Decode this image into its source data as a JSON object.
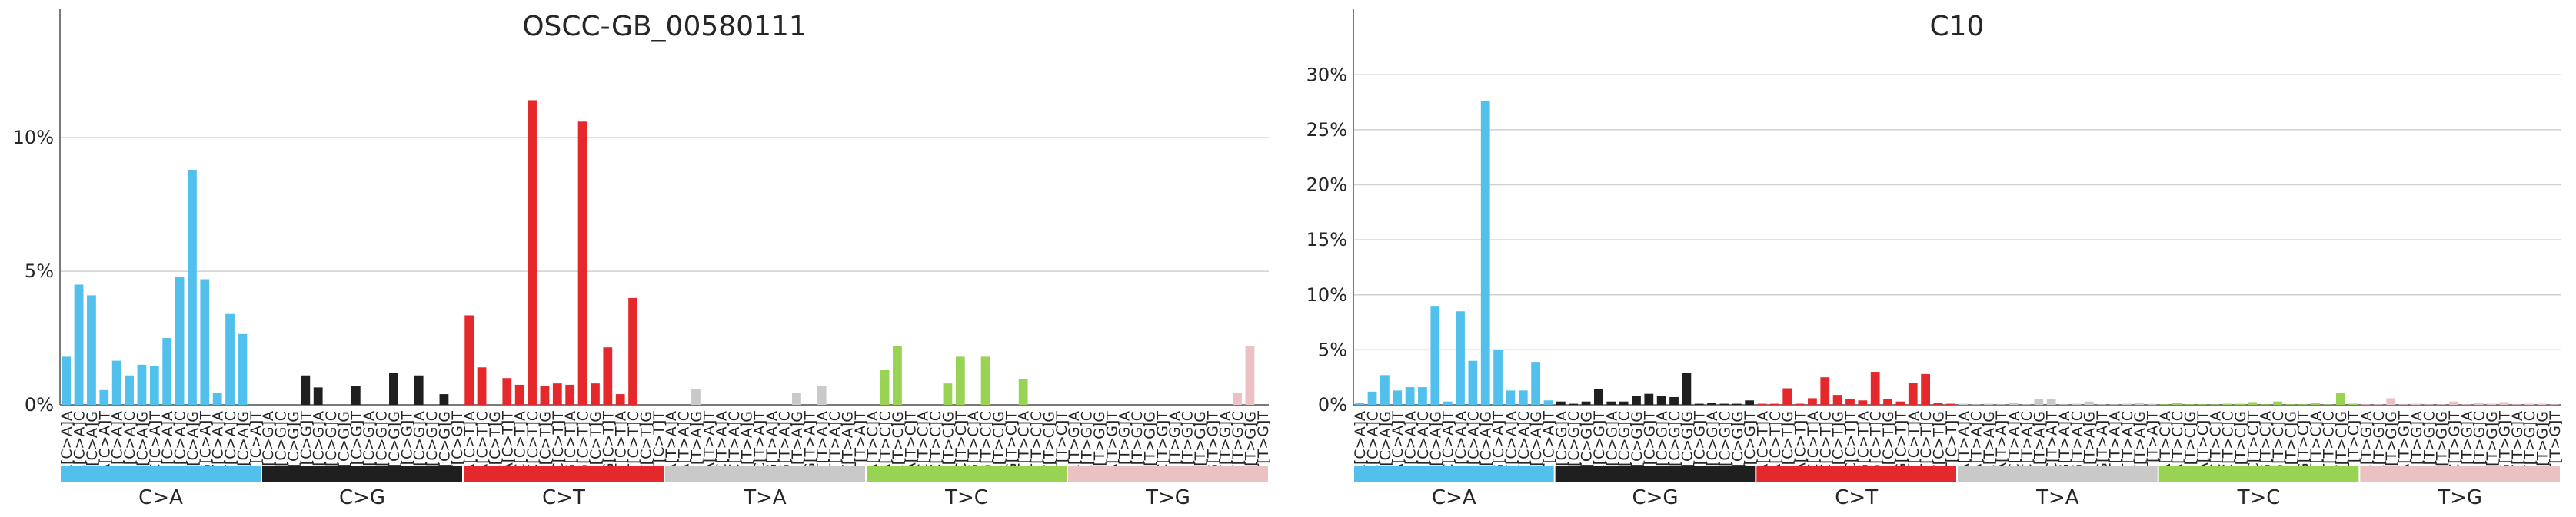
{
  "colors": {
    "C>A": "#52C0EC",
    "C>G": "#1F1F1F",
    "C>T": "#E4282B",
    "T>A": "#C9C9C9",
    "T>C": "#98D353",
    "T>G": "#EBC1C4"
  },
  "mutation_types": [
    "C>A",
    "C>G",
    "C>T",
    "T>A",
    "T>C",
    "T>G"
  ],
  "chart_data": [
    {
      "type": "bar",
      "title": "OSCC-GB_00580111",
      "ylim": [
        0,
        14
      ],
      "yticks": [
        0,
        5,
        10
      ],
      "ytick_labels": [
        "0%",
        "5%",
        "10%"
      ],
      "grid": true,
      "categories": [
        "A[C>A]A",
        "A[C>A]C",
        "A[C>A]G",
        "A[C>A]T",
        "C[C>A]A",
        "C[C>A]C",
        "C[C>A]G",
        "C[C>A]T",
        "G[C>A]A",
        "G[C>A]C",
        "G[C>A]G",
        "G[C>A]T",
        "T[C>A]A",
        "T[C>A]C",
        "T[C>A]G",
        "T[C>A]T",
        "A[C>G]A",
        "A[C>G]C",
        "A[C>G]G",
        "A[C>G]T",
        "C[C>G]A",
        "C[C>G]C",
        "C[C>G]G",
        "C[C>G]T",
        "G[C>G]A",
        "G[C>G]C",
        "G[C>G]G",
        "G[C>G]T",
        "T[C>G]A",
        "T[C>G]C",
        "T[C>G]G",
        "T[C>G]T",
        "A[C>T]A",
        "A[C>T]C",
        "A[C>T]G",
        "A[C>T]T",
        "C[C>T]A",
        "C[C>T]C",
        "C[C>T]G",
        "C[C>T]T",
        "G[C>T]A",
        "G[C>T]C",
        "G[C>T]G",
        "G[C>T]T",
        "T[C>T]A",
        "T[C>T]C",
        "T[C>T]G",
        "T[C>T]T",
        "A[T>A]A",
        "A[T>A]C",
        "A[T>A]G",
        "A[T>A]T",
        "C[T>A]A",
        "C[T>A]C",
        "C[T>A]G",
        "C[T>A]T",
        "G[T>A]A",
        "G[T>A]C",
        "G[T>A]G",
        "G[T>A]T",
        "T[T>A]A",
        "T[T>A]C",
        "T[T>A]G",
        "T[T>A]T",
        "A[T>C]A",
        "A[T>C]C",
        "A[T>C]G",
        "A[T>C]T",
        "C[T>C]A",
        "C[T>C]C",
        "C[T>C]G",
        "C[T>C]T",
        "G[T>C]A",
        "G[T>C]C",
        "G[T>C]G",
        "G[T>C]T",
        "T[T>C]A",
        "T[T>C]C",
        "T[T>C]G",
        "T[T>C]T",
        "A[T>G]A",
        "A[T>G]C",
        "A[T>G]G",
        "A[T>G]T",
        "C[T>G]A",
        "C[T>G]C",
        "C[T>G]G",
        "C[T>G]T",
        "G[T>G]A",
        "G[T>G]C",
        "G[T>G]G",
        "G[T>G]T",
        "T[T>G]A",
        "T[T>G]C",
        "T[T>G]G",
        "T[T>G]T"
      ],
      "values": [
        1.8,
        4.5,
        4.1,
        0.55,
        1.65,
        1.1,
        1.5,
        1.45,
        2.5,
        4.8,
        8.8,
        4.7,
        0.45,
        3.4,
        2.65,
        0,
        0,
        0,
        0,
        1.1,
        0.65,
        0,
        0,
        0.7,
        0,
        0,
        1.2,
        0,
        1.1,
        0,
        0.4,
        0,
        3.35,
        1.4,
        0,
        1.0,
        0.75,
        11.4,
        0.7,
        0.8,
        0.75,
        10.6,
        0.8,
        2.15,
        0.4,
        4.0,
        0,
        0,
        0,
        0,
        0.6,
        0,
        0,
        0,
        0,
        0,
        0,
        0,
        0.45,
        0,
        0.7,
        0,
        0,
        0,
        0,
        1.3,
        2.2,
        0,
        0,
        0,
        0.8,
        1.8,
        0,
        1.8,
        0,
        0,
        0.95,
        0,
        0,
        0,
        0,
        0,
        0,
        0,
        0,
        0,
        0,
        0,
        0,
        0,
        0,
        0,
        0,
        0.45,
        2.2,
        0
      ]
    },
    {
      "type": "bar",
      "title": "C10",
      "ylim": [
        0,
        34
      ],
      "yticks": [
        0,
        5,
        10,
        15,
        20,
        25,
        30
      ],
      "ytick_labels": [
        "0%",
        "5%",
        "10%",
        "15%",
        "20%",
        "25%",
        "30%"
      ],
      "grid": true,
      "categories": [
        "A[C>A]A",
        "A[C>A]C",
        "A[C>A]G",
        "A[C>A]T",
        "C[C>A]A",
        "C[C>A]C",
        "C[C>A]G",
        "C[C>A]T",
        "G[C>A]A",
        "G[C>A]C",
        "G[C>A]G",
        "G[C>A]T",
        "T[C>A]A",
        "T[C>A]C",
        "T[C>A]G",
        "T[C>A]T",
        "A[C>G]A",
        "A[C>G]C",
        "A[C>G]G",
        "A[C>G]T",
        "C[C>G]A",
        "C[C>G]C",
        "C[C>G]G",
        "C[C>G]T",
        "G[C>G]A",
        "G[C>G]C",
        "G[C>G]G",
        "G[C>G]T",
        "T[C>G]A",
        "T[C>G]C",
        "T[C>G]G",
        "T[C>G]T",
        "A[C>T]A",
        "A[C>T]C",
        "A[C>T]G",
        "A[C>T]T",
        "C[C>T]A",
        "C[C>T]C",
        "C[C>T]G",
        "C[C>T]T",
        "G[C>T]A",
        "G[C>T]C",
        "G[C>T]G",
        "G[C>T]T",
        "T[C>T]A",
        "T[C>T]C",
        "T[C>T]G",
        "T[C>T]T",
        "A[T>A]A",
        "A[T>A]C",
        "A[T>A]G",
        "A[T>A]T",
        "C[T>A]A",
        "C[T>A]C",
        "C[T>A]G",
        "C[T>A]T",
        "G[T>A]A",
        "G[T>A]C",
        "G[T>A]G",
        "G[T>A]T",
        "T[T>A]A",
        "T[T>A]C",
        "T[T>A]G",
        "T[T>A]T",
        "A[T>C]A",
        "A[T>C]C",
        "A[T>C]G",
        "A[T>C]T",
        "C[T>C]A",
        "C[T>C]C",
        "C[T>C]G",
        "C[T>C]T",
        "G[T>C]A",
        "G[T>C]C",
        "G[T>C]G",
        "G[T>C]T",
        "T[T>C]A",
        "T[T>C]C",
        "T[T>C]G",
        "T[T>C]T",
        "A[T>G]A",
        "A[T>G]C",
        "A[T>G]G",
        "A[T>G]T",
        "C[T>G]A",
        "C[T>G]C",
        "C[T>G]G",
        "C[T>G]T",
        "G[T>G]A",
        "G[T>G]C",
        "G[T>G]G",
        "G[T>G]T",
        "T[T>G]A",
        "T[T>G]C",
        "T[T>G]G",
        "T[T>G]T"
      ],
      "values": [
        0.2,
        1.2,
        2.7,
        1.3,
        1.6,
        1.6,
        9.0,
        0.3,
        8.5,
        4.0,
        27.6,
        5.0,
        1.3,
        1.3,
        3.9,
        0.4,
        0.3,
        0.1,
        0.3,
        1.4,
        0.3,
        0.3,
        0.8,
        1.0,
        0.8,
        0.7,
        2.9,
        0.1,
        0.2,
        0.1,
        0.1,
        0.4,
        0.1,
        0.1,
        1.5,
        0.1,
        0.6,
        2.5,
        0.9,
        0.5,
        0.4,
        3.0,
        0.5,
        0.3,
        2.0,
        2.8,
        0.2,
        0.1,
        0.1,
        0.05,
        0.1,
        0.05,
        0.2,
        0.05,
        0.55,
        0.5,
        0.05,
        0.1,
        0.3,
        0.05,
        0.05,
        0.1,
        0.2,
        0.1,
        0.05,
        0.15,
        0.05,
        0.05,
        0.05,
        0.1,
        0.1,
        0.25,
        0.05,
        0.3,
        0.05,
        0.05,
        0.2,
        0.05,
        1.1,
        0.1,
        0.05,
        0.05,
        0.6,
        0.05,
        0.1,
        0.05,
        0.05,
        0.3,
        0.05,
        0.2,
        0.1,
        0.25,
        0.05,
        0.1,
        0.1,
        0.05
      ]
    }
  ]
}
